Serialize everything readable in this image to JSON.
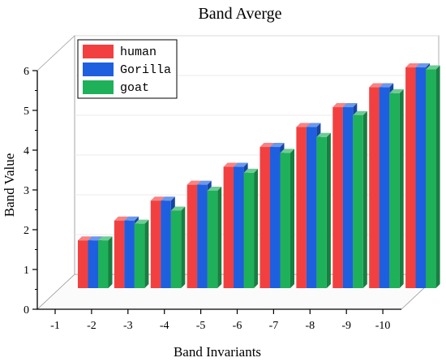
{
  "chart_data": {
    "type": "bar",
    "title": "Band Averge",
    "xlabel": "Band Invariants",
    "ylabel": "Band Value",
    "categories": [
      "-1",
      "-2",
      "-3",
      "-4",
      "-5",
      "-6",
      "-7",
      "-8",
      "-9",
      "-10"
    ],
    "series": [
      {
        "name": "human",
        "color": "#f24040",
        "values": [
          1.2,
          1.7,
          2.2,
          2.6,
          3.05,
          3.55,
          4.05,
          4.55,
          5.05,
          5.55
        ]
      },
      {
        "name": "Gorilla",
        "color": "#1e5fe0",
        "values": [
          1.2,
          1.7,
          2.2,
          2.6,
          3.05,
          3.55,
          4.05,
          4.55,
          5.05,
          5.55
        ]
      },
      {
        "name": "goat",
        "color": "#1fb05a",
        "values": [
          1.2,
          1.62,
          1.95,
          2.45,
          2.9,
          3.4,
          3.8,
          4.35,
          4.9,
          5.5
        ]
      }
    ],
    "yticks": [
      "0",
      "1",
      "2",
      "3",
      "4",
      "5",
      "6"
    ],
    "ylim": [
      0,
      6
    ],
    "legend_position": "top-left",
    "grid": false,
    "style": "3d-bars"
  }
}
